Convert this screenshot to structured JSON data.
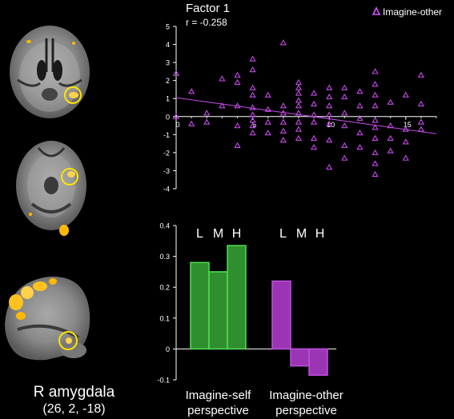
{
  "brain": {
    "region_label": "R amygdala",
    "coordinates": "(26, 2, -18)"
  },
  "colors": {
    "background": "#000000",
    "self_fill": "#2f8f2f",
    "self_stroke": "#4fe04f",
    "other_fill": "#9b35b4",
    "other_stroke": "#c04fe0",
    "scatter_marker": "#c34ae6",
    "roi_circle": "#ffe600",
    "activation": "#ffb800"
  },
  "chart_data": [
    {
      "type": "scatter",
      "title": "Factor 1",
      "annotation": "r = -0.258",
      "legend": {
        "label": "Imagine-other",
        "marker": "triangle",
        "position": "top-right"
      },
      "xlabel": "",
      "ylabel": "",
      "xlim": [
        0,
        17
      ],
      "ylim": [
        -4,
        5
      ],
      "xticks": [
        0,
        5,
        10,
        15
      ],
      "yticks": [
        5,
        4,
        3,
        2,
        1,
        0,
        -1,
        -2,
        -3,
        -4
      ],
      "trendline": {
        "x": [
          0,
          17
        ],
        "y": [
          1.05,
          -0.95
        ]
      },
      "points": [
        {
          "x": 0,
          "y": 2.4
        },
        {
          "x": 0,
          "y": 0
        },
        {
          "x": 1,
          "y": 1.4
        },
        {
          "x": 1,
          "y": -0.4
        },
        {
          "x": 2,
          "y": 0.2
        },
        {
          "x": 2,
          "y": -0.3
        },
        {
          "x": 3,
          "y": 2.1
        },
        {
          "x": 3,
          "y": 0.6
        },
        {
          "x": 4,
          "y": 2.3
        },
        {
          "x": 4,
          "y": 1.9
        },
        {
          "x": 4,
          "y": 0.6
        },
        {
          "x": 4,
          "y": -0.5
        },
        {
          "x": 4,
          "y": -1.6
        },
        {
          "x": 5,
          "y": 3.2
        },
        {
          "x": 5,
          "y": 2.6
        },
        {
          "x": 5,
          "y": 1.6
        },
        {
          "x": 5,
          "y": 1.2
        },
        {
          "x": 5,
          "y": 0.5
        },
        {
          "x": 5,
          "y": 0.1
        },
        {
          "x": 5,
          "y": -0.2
        },
        {
          "x": 5,
          "y": -0.5
        },
        {
          "x": 5,
          "y": -0.9
        },
        {
          "x": 6,
          "y": 1.2
        },
        {
          "x": 6,
          "y": 0.4
        },
        {
          "x": 6,
          "y": -0.3
        },
        {
          "x": 6,
          "y": -0.9
        },
        {
          "x": 7,
          "y": 4.1
        },
        {
          "x": 7,
          "y": 0.6
        },
        {
          "x": 7,
          "y": 0.2
        },
        {
          "x": 7,
          "y": -0.3
        },
        {
          "x": 7,
          "y": -0.8
        },
        {
          "x": 7,
          "y": -1.3
        },
        {
          "x": 8,
          "y": 1.9
        },
        {
          "x": 8,
          "y": 1.6
        },
        {
          "x": 8,
          "y": 1.3
        },
        {
          "x": 8,
          "y": 0.9
        },
        {
          "x": 8,
          "y": 0.6
        },
        {
          "x": 8,
          "y": 0.2
        },
        {
          "x": 8,
          "y": -0.3
        },
        {
          "x": 8,
          "y": -0.7
        },
        {
          "x": 8,
          "y": -1.2
        },
        {
          "x": 9,
          "y": 1.3
        },
        {
          "x": 9,
          "y": 0.7
        },
        {
          "x": 9,
          "y": 0.1
        },
        {
          "x": 9,
          "y": -0.3
        },
        {
          "x": 9,
          "y": -1.2
        },
        {
          "x": 9,
          "y": -1.7
        },
        {
          "x": 10,
          "y": 1.6
        },
        {
          "x": 10,
          "y": 1.1
        },
        {
          "x": 10,
          "y": 0.6
        },
        {
          "x": 10,
          "y": 0.1
        },
        {
          "x": 10,
          "y": -0.4
        },
        {
          "x": 10,
          "y": -1.3
        },
        {
          "x": 10,
          "y": -2.8
        },
        {
          "x": 11,
          "y": 1.6
        },
        {
          "x": 11,
          "y": 1.1
        },
        {
          "x": 11,
          "y": 0.2
        },
        {
          "x": 11,
          "y": -0.5
        },
        {
          "x": 11,
          "y": -1.6
        },
        {
          "x": 11,
          "y": -2.3
        },
        {
          "x": 12,
          "y": 1.4
        },
        {
          "x": 12,
          "y": 0.6
        },
        {
          "x": 12,
          "y": -0.1
        },
        {
          "x": 12,
          "y": -0.9
        },
        {
          "x": 12,
          "y": -1.7
        },
        {
          "x": 13,
          "y": 2.5
        },
        {
          "x": 13,
          "y": 1.8
        },
        {
          "x": 13,
          "y": 1.2
        },
        {
          "x": 13,
          "y": 0.6
        },
        {
          "x": 13,
          "y": -0.2
        },
        {
          "x": 13,
          "y": -0.6
        },
        {
          "x": 13,
          "y": -1.2
        },
        {
          "x": 13,
          "y": -2.0
        },
        {
          "x": 13,
          "y": -2.6
        },
        {
          "x": 13,
          "y": -3.2
        },
        {
          "x": 14,
          "y": 0.8
        },
        {
          "x": 14,
          "y": -0.5
        },
        {
          "x": 14,
          "y": -1.2
        },
        {
          "x": 14,
          "y": -1.9
        },
        {
          "x": 15,
          "y": 1.2
        },
        {
          "x": 15,
          "y": -0.7
        },
        {
          "x": 15,
          "y": -1.4
        },
        {
          "x": 15,
          "y": -2.3
        },
        {
          "x": 16,
          "y": 2.3
        },
        {
          "x": 16,
          "y": 0.7
        },
        {
          "x": 16,
          "y": -0.3
        },
        {
          "x": 16,
          "y": -0.7
        }
      ]
    },
    {
      "type": "bar",
      "ylim": [
        -0.1,
        0.4
      ],
      "yticks": [
        0.4,
        0.3,
        0.2,
        0.1,
        0,
        -0.1
      ],
      "groups": [
        {
          "name": "Imagine-self perspective",
          "line1": "Imagine-self",
          "line2": "perspective",
          "color": "green",
          "bars": [
            {
              "label": "L",
              "value": 0.28
            },
            {
              "label": "M",
              "value": 0.25
            },
            {
              "label": "H",
              "value": 0.335
            }
          ]
        },
        {
          "name": "Imagine-other perspective",
          "line1": "Imagine-other",
          "line2": "perspective",
          "color": "purple",
          "bars": [
            {
              "label": "L",
              "value": 0.22
            },
            {
              "label": "M",
              "value": -0.055
            },
            {
              "label": "H",
              "value": -0.085
            }
          ]
        }
      ]
    }
  ]
}
